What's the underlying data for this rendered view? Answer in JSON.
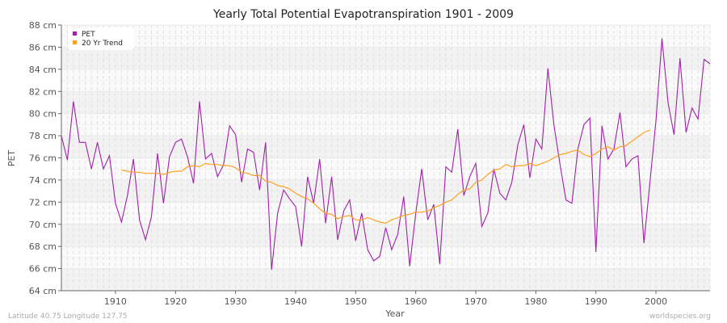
{
  "chart_data": {
    "type": "line",
    "title": "Yearly Total Potential Evapotranspiration 1901 - 2009",
    "xlabel": "Year",
    "ylabel": "PET",
    "xlim": [
      1901,
      2009
    ],
    "ylim": [
      64,
      88
    ],
    "x_ticks": [
      "1910",
      "1920",
      "1930",
      "1940",
      "1950",
      "1960",
      "1970",
      "1980",
      "1990",
      "2000"
    ],
    "y_ticks": [
      "64 cm",
      "66 cm",
      "68 cm",
      "70 cm",
      "72 cm",
      "74 cm",
      "76 cm",
      "78 cm",
      "80 cm",
      "82 cm",
      "84 cm",
      "86 cm",
      "88 cm"
    ],
    "grid": true,
    "legend_position": "top-left",
    "series": [
      {
        "name": "PET",
        "color": "#a020a8",
        "x_start": 1901,
        "values": [
          78.0,
          75.8,
          81.1,
          77.4,
          77.4,
          75.0,
          77.4,
          75.0,
          76.2,
          71.9,
          70.2,
          72.6,
          75.9,
          70.4,
          68.6,
          70.7,
          76.4,
          71.9,
          76.1,
          77.4,
          77.7,
          76.1,
          73.7,
          81.1,
          75.9,
          76.4,
          74.3,
          75.4,
          78.9,
          78.1,
          73.8,
          76.8,
          76.5,
          73.1,
          77.4,
          65.9,
          71.0,
          73.1,
          72.3,
          71.6,
          68.0,
          74.3,
          71.9,
          75.9,
          70.1,
          74.3,
          68.6,
          71.2,
          72.2,
          68.5,
          71.0,
          67.7,
          66.7,
          67.1,
          69.7,
          67.7,
          69.1,
          72.5,
          66.2,
          71.0,
          75.0,
          70.4,
          71.8,
          66.4,
          75.2,
          74.7,
          78.6,
          72.6,
          74.3,
          75.5,
          69.8,
          71.0,
          75.0,
          72.8,
          72.2,
          73.8,
          77.2,
          79.0,
          74.2,
          77.7,
          76.8,
          84.1,
          79.0,
          75.5,
          72.2,
          71.9,
          76.8,
          79.0,
          79.6,
          67.5,
          78.9,
          75.9,
          76.8,
          80.1,
          75.2,
          75.9,
          76.2,
          68.3,
          73.8,
          79.4,
          86.8,
          81.0,
          78.1,
          85.0,
          78.3,
          80.5,
          79.5,
          84.9,
          84.5
        ]
      },
      {
        "name": "20 Yr Trend",
        "color": "#ffa020",
        "x_start": 1911,
        "values": [
          74.9,
          74.8,
          74.7,
          74.7,
          74.6,
          74.6,
          74.6,
          74.5,
          74.7,
          74.8,
          74.8,
          75.2,
          75.3,
          75.2,
          75.5,
          75.4,
          75.4,
          75.3,
          75.3,
          75.1,
          74.7,
          74.6,
          74.4,
          74.4,
          73.9,
          73.8,
          73.5,
          73.4,
          73.2,
          72.8,
          72.5,
          72.3,
          71.9,
          71.4,
          71.0,
          70.9,
          70.5,
          70.7,
          70.8,
          70.4,
          70.4,
          70.6,
          70.4,
          70.2,
          70.1,
          70.4,
          70.6,
          70.8,
          70.9,
          71.1,
          71.1,
          71.2,
          71.5,
          71.7,
          72.0,
          72.2,
          72.7,
          73.1,
          73.2,
          73.8,
          74.0,
          74.5,
          74.9,
          75.0,
          75.4,
          75.2,
          75.3,
          75.3,
          75.5,
          75.3,
          75.5,
          75.7,
          76.0,
          76.3,
          76.4,
          76.6,
          76.7,
          76.3,
          76.1,
          76.4,
          76.8,
          77.0,
          76.7,
          77.0,
          77.1,
          77.5,
          77.9,
          78.3,
          78.5
        ]
      }
    ]
  },
  "footer": {
    "left": "Latitude 40.75 Longitude 127.75",
    "right": "worldspecies.org"
  }
}
